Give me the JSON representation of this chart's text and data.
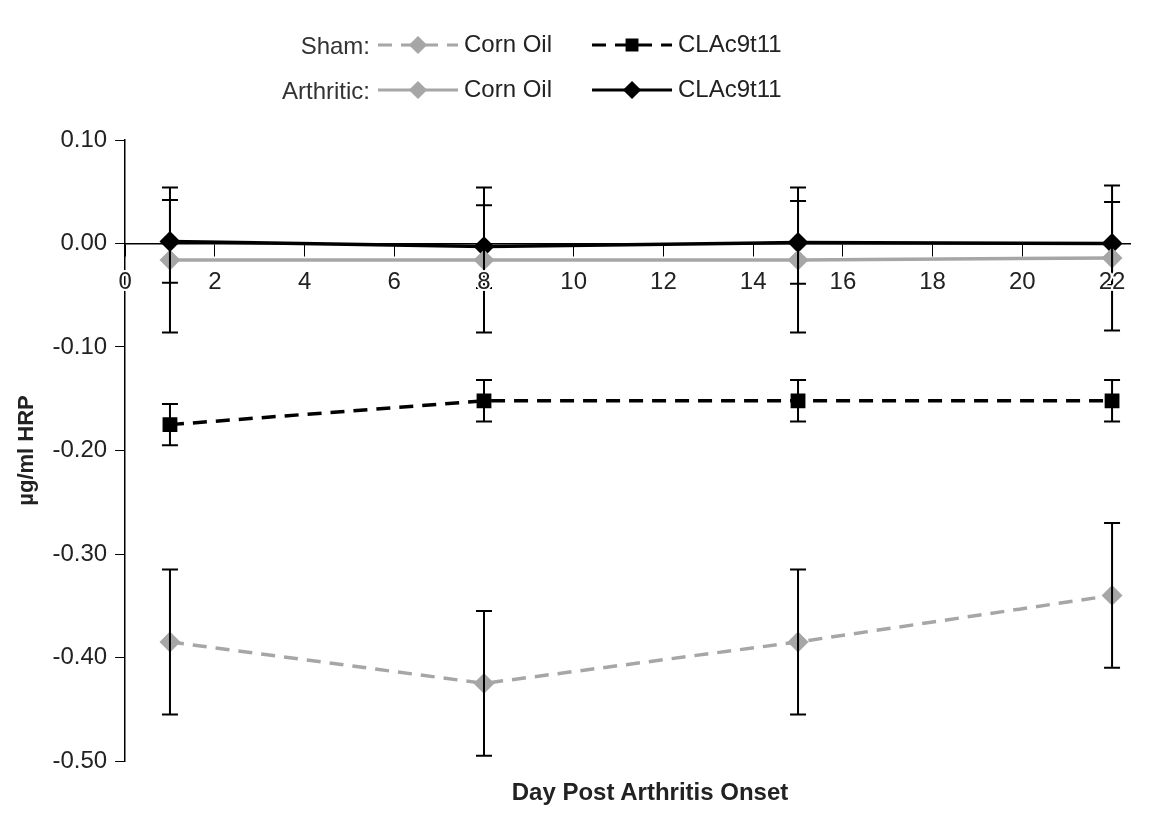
{
  "chart_data": {
    "type": "line",
    "xlabel": "Day Post Arthritis Onset",
    "ylabel": "µg/ml HRP",
    "xlim": [
      0,
      22.4
    ],
    "xticks": [
      0,
      2,
      4,
      6,
      8,
      10,
      12,
      14,
      16,
      18,
      20,
      22
    ],
    "ylim": [
      -0.5,
      0.1
    ],
    "yticks": [
      {
        "value": -0.5,
        "label": "-0.50"
      },
      {
        "value": -0.4,
        "label": "-0.40"
      },
      {
        "value": -0.3,
        "label": "-0.30"
      },
      {
        "value": -0.2,
        "label": "-0.20"
      },
      {
        "value": -0.1,
        "label": "-0.10"
      },
      {
        "value": 0,
        "label": "0.00"
      },
      {
        "value": 0.1,
        "label": "0.10"
      }
    ],
    "x": [
      1,
      8,
      15,
      22
    ],
    "grid": false,
    "legend": "top",
    "annotations": [
      "Sham:",
      "Arthritic:"
    ],
    "series": [
      {
        "name": "Corn Oil",
        "color": "#a6a6a6",
        "line_style": "dashed",
        "marker": "diamond",
        "values": [
          -0.385,
          -0.425,
          -0.385,
          -0.34
        ],
        "errors": [
          0.07,
          0.07,
          0.07,
          0.07
        ]
      },
      {
        "name": "CLAc9t11",
        "color": "#000000",
        "line_style": "dashed",
        "marker": "square",
        "values": [
          -0.175,
          -0.152,
          -0.152,
          -0.152
        ],
        "errors": [
          0.02,
          0.02,
          0.02,
          0.02
        ]
      },
      {
        "name": "Corn Oil",
        "color": "#a6a6a6",
        "line_style": "solid",
        "marker": "diamond",
        "values": [
          -0.016,
          -0.016,
          -0.016,
          -0.014
        ],
        "errors": [
          0.07,
          0.07,
          0.07,
          0.07
        ]
      },
      {
        "name": "CLAc9t11",
        "color": "#000000",
        "line_style": "solid",
        "marker": "diamond",
        "values": [
          0.002,
          -0.003,
          0.001,
          0
        ],
        "errors": [
          0.04,
          0.04,
          0.04,
          0.04
        ]
      }
    ]
  }
}
